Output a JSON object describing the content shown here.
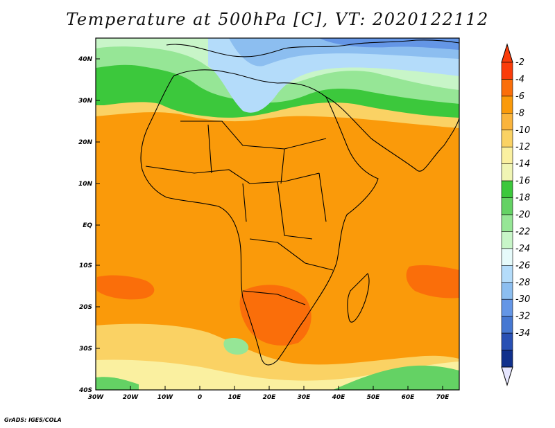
{
  "title": "Temperature at 500hPa [C], VT: 2020122112",
  "credit": "GrADS: IGES/COLA",
  "map": {
    "lon_range": [
      -30,
      75
    ],
    "lat_range": [
      -40,
      45
    ],
    "x_ticks": [
      "30W",
      "20W",
      "10W",
      "0",
      "10E",
      "20E",
      "30E",
      "40E",
      "50E",
      "60E",
      "70E"
    ],
    "y_ticks": [
      "40N",
      "30N",
      "20N",
      "10N",
      "EQ",
      "10S",
      "20S",
      "30S",
      "40S"
    ]
  },
  "colorbar": {
    "labels": [
      "-2",
      "-4",
      "-6",
      "-8",
      "-10",
      "-12",
      "-14",
      "-16",
      "-18",
      "-20",
      "-22",
      "-24",
      "-26",
      "-28",
      "-30",
      "-32",
      "-34"
    ],
    "colors": [
      "#fa3c0a",
      "#fa6e0a",
      "#fa9a0a",
      "#fab43c",
      "#fad264",
      "#faf0a0",
      "#f0f5b4",
      "#3cc83c",
      "#64d264",
      "#96e696",
      "#c8f5c8",
      "#e6fafa",
      "#b4dcfa",
      "#8cbef0",
      "#6496e6",
      "#4678d2",
      "#2850b4",
      "#10308c"
    ],
    "top_color": "#fa3c0a",
    "bottom_color": "#e6e6ff"
  }
}
